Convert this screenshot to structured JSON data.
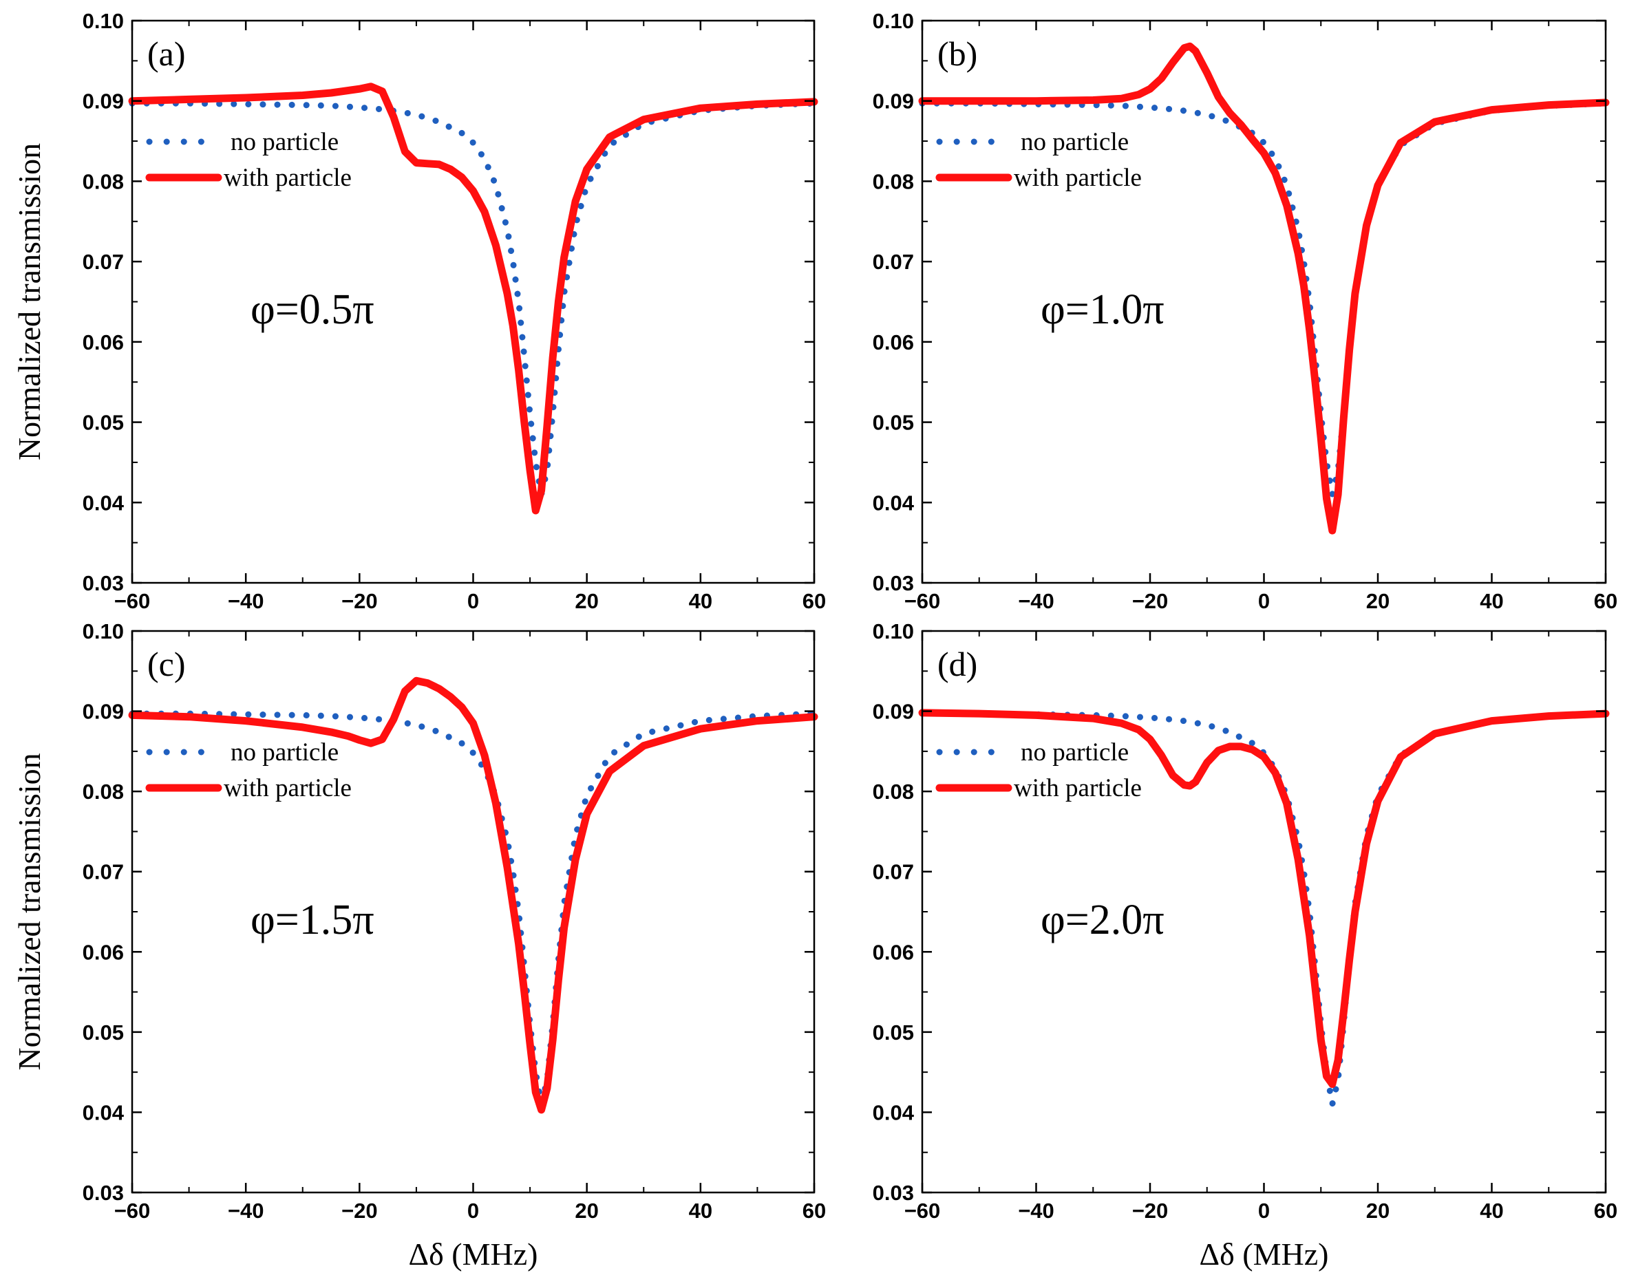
{
  "chart_data": [
    {
      "type": "line",
      "panel_label": "(a)",
      "annotation": "φ=0.5π",
      "xlabel": "",
      "ylabel": "Normalized transmission",
      "xlim": [
        -60,
        60
      ],
      "ylim": [
        0.03,
        0.1
      ],
      "xticks": [
        "−60",
        "−40",
        "−20",
        "0",
        "20",
        "40",
        "60"
      ],
      "yticks": [
        "0.03",
        "0.04",
        "0.05",
        "0.06",
        "0.07",
        "0.08",
        "0.09",
        "0.10"
      ],
      "legend": [
        "no particle",
        "with particle"
      ],
      "series": [
        {
          "name": "no particle",
          "style": "dotted",
          "color": "#1f5fbf",
          "x": [
            -60,
            -50,
            -40,
            -30,
            -25,
            -20,
            -15,
            -10,
            -6,
            -2,
            0,
            2,
            4,
            6,
            7,
            8,
            9,
            10,
            11,
            12,
            13,
            14,
            15,
            16,
            18,
            20,
            24,
            30,
            40,
            50,
            60
          ],
          "y": [
            0.0897,
            0.0897,
            0.0896,
            0.0895,
            0.0894,
            0.0892,
            0.0889,
            0.0883,
            0.0874,
            0.086,
            0.0848,
            0.0828,
            0.0795,
            0.074,
            0.07,
            0.065,
            0.0582,
            0.051,
            0.045,
            0.041,
            0.044,
            0.051,
            0.059,
            0.066,
            0.0745,
            0.0795,
            0.0845,
            0.0872,
            0.0888,
            0.0894,
            0.0897
          ]
        },
        {
          "name": "with particle",
          "style": "solid",
          "color": "#ff1010",
          "x": [
            -60,
            -50,
            -40,
            -30,
            -25,
            -20,
            -18,
            -16,
            -14,
            -12,
            -10,
            -8,
            -6,
            -4,
            -2,
            0,
            2,
            4,
            6,
            7,
            8,
            9,
            10,
            11,
            12,
            13,
            14,
            15,
            16,
            18,
            20,
            24,
            30,
            40,
            50,
            60
          ],
          "y": [
            0.09,
            0.0902,
            0.0904,
            0.0907,
            0.091,
            0.0915,
            0.0918,
            0.0912,
            0.088,
            0.0837,
            0.0823,
            0.0822,
            0.0821,
            0.0815,
            0.0805,
            0.0788,
            0.0762,
            0.072,
            0.066,
            0.062,
            0.0565,
            0.05,
            0.044,
            0.039,
            0.0415,
            0.0495,
            0.058,
            0.065,
            0.0705,
            0.0775,
            0.0815,
            0.0855,
            0.0877,
            0.0891,
            0.0896,
            0.0899
          ]
        }
      ]
    },
    {
      "type": "line",
      "panel_label": "(b)",
      "annotation": "φ=1.0π",
      "xlabel": "",
      "ylabel": "",
      "xlim": [
        -60,
        60
      ],
      "ylim": [
        0.03,
        0.1
      ],
      "xticks": [
        "−60",
        "−40",
        "−20",
        "0",
        "20",
        "40",
        "60"
      ],
      "yticks": [
        "0.03",
        "0.04",
        "0.05",
        "0.06",
        "0.07",
        "0.08",
        "0.09",
        "0.10"
      ],
      "legend": [
        "no particle",
        "with particle"
      ],
      "series": [
        {
          "name": "no particle",
          "style": "dotted",
          "color": "#1f5fbf",
          "x": [
            -60,
            -50,
            -40,
            -30,
            -25,
            -20,
            -15,
            -10,
            -6,
            -2,
            0,
            2,
            4,
            6,
            7,
            8,
            9,
            10,
            11,
            12,
            13,
            14,
            15,
            16,
            18,
            20,
            24,
            30,
            40,
            50,
            60
          ],
          "y": [
            0.0897,
            0.0897,
            0.0896,
            0.0895,
            0.0894,
            0.0892,
            0.0889,
            0.0883,
            0.0874,
            0.086,
            0.0848,
            0.0828,
            0.0795,
            0.074,
            0.07,
            0.065,
            0.0582,
            0.051,
            0.045,
            0.041,
            0.044,
            0.051,
            0.059,
            0.066,
            0.0745,
            0.0795,
            0.0845,
            0.0872,
            0.0888,
            0.0894,
            0.0897
          ]
        },
        {
          "name": "with particle",
          "style": "solid",
          "color": "#ff1010",
          "x": [
            -60,
            -40,
            -30,
            -25,
            -22,
            -20,
            -18,
            -16,
            -14,
            -13,
            -12,
            -10,
            -8,
            -6,
            -4,
            -2,
            0,
            2,
            4,
            6,
            7,
            8,
            9,
            10,
            11,
            12,
            13,
            14,
            15,
            16,
            18,
            20,
            24,
            30,
            40,
            50,
            60
          ],
          "y": [
            0.09,
            0.09,
            0.0901,
            0.0903,
            0.0908,
            0.0915,
            0.0928,
            0.0948,
            0.0966,
            0.0968,
            0.0962,
            0.0935,
            0.0905,
            0.0885,
            0.087,
            0.0852,
            0.0835,
            0.081,
            0.077,
            0.071,
            0.067,
            0.0615,
            0.055,
            0.048,
            0.0405,
            0.0365,
            0.041,
            0.0505,
            0.059,
            0.066,
            0.0745,
            0.0795,
            0.0848,
            0.0874,
            0.0889,
            0.0895,
            0.0898
          ]
        }
      ]
    },
    {
      "type": "line",
      "panel_label": "(c)",
      "annotation": "φ=1.5π",
      "xlabel": "Δδ (MHz)",
      "ylabel": "Normalized transmission",
      "xlim": [
        -60,
        60
      ],
      "ylim": [
        0.03,
        0.1
      ],
      "xticks": [
        "−60",
        "−40",
        "−20",
        "0",
        "20",
        "40",
        "60"
      ],
      "yticks": [
        "0.03",
        "0.04",
        "0.05",
        "0.06",
        "0.07",
        "0.08",
        "0.09",
        "0.10"
      ],
      "legend": [
        "no particle",
        "with particle"
      ],
      "series": [
        {
          "name": "no particle",
          "style": "dotted",
          "color": "#1f5fbf",
          "x": [
            -60,
            -50,
            -40,
            -30,
            -25,
            -20,
            -15,
            -10,
            -6,
            -2,
            0,
            2,
            4,
            6,
            7,
            8,
            9,
            10,
            11,
            12,
            13,
            14,
            15,
            16,
            18,
            20,
            24,
            30,
            40,
            50,
            60
          ],
          "y": [
            0.0897,
            0.0897,
            0.0896,
            0.0895,
            0.0894,
            0.0892,
            0.0889,
            0.0883,
            0.0874,
            0.086,
            0.0848,
            0.0828,
            0.0795,
            0.074,
            0.07,
            0.065,
            0.0582,
            0.051,
            0.045,
            0.041,
            0.044,
            0.051,
            0.059,
            0.066,
            0.0745,
            0.0795,
            0.0845,
            0.0872,
            0.0888,
            0.0894,
            0.0897
          ]
        },
        {
          "name": "with particle",
          "style": "solid",
          "color": "#ff1010",
          "x": [
            -60,
            -50,
            -40,
            -30,
            -25,
            -22,
            -20,
            -18,
            -16,
            -14,
            -12,
            -10,
            -8,
            -6,
            -4,
            -2,
            0,
            2,
            4,
            6,
            8,
            9,
            10,
            11,
            12,
            13,
            14,
            15,
            16,
            18,
            20,
            24,
            30,
            40,
            50,
            60
          ],
          "y": [
            0.0895,
            0.0893,
            0.0888,
            0.088,
            0.0874,
            0.0869,
            0.0864,
            0.086,
            0.0865,
            0.089,
            0.0925,
            0.0938,
            0.0935,
            0.0928,
            0.0918,
            0.0905,
            0.0885,
            0.0845,
            0.0785,
            0.0705,
            0.061,
            0.055,
            0.0485,
            0.0425,
            0.0403,
            0.043,
            0.049,
            0.0565,
            0.063,
            0.0715,
            0.0772,
            0.0825,
            0.0857,
            0.0878,
            0.0888,
            0.0893
          ]
        }
      ]
    },
    {
      "type": "line",
      "panel_label": "(d)",
      "annotation": "φ=2.0π",
      "xlabel": "Δδ (MHz)",
      "ylabel": "",
      "xlim": [
        -60,
        60
      ],
      "ylim": [
        0.03,
        0.1
      ],
      "xticks": [
        "−60",
        "−40",
        "−20",
        "0",
        "20",
        "40",
        "60"
      ],
      "yticks": [
        "0.03",
        "0.04",
        "0.05",
        "0.06",
        "0.07",
        "0.08",
        "0.09",
        "0.10"
      ],
      "legend": [
        "no particle",
        "with particle"
      ],
      "series": [
        {
          "name": "no particle",
          "style": "dotted",
          "color": "#1f5fbf",
          "x": [
            -60,
            -50,
            -40,
            -30,
            -25,
            -20,
            -15,
            -10,
            -6,
            -2,
            0,
            2,
            4,
            6,
            7,
            8,
            9,
            10,
            11,
            12,
            13,
            14,
            15,
            16,
            18,
            20,
            24,
            30,
            40,
            50,
            60
          ],
          "y": [
            0.0897,
            0.0897,
            0.0896,
            0.0895,
            0.0894,
            0.0892,
            0.0889,
            0.0883,
            0.0874,
            0.086,
            0.0848,
            0.0828,
            0.0795,
            0.074,
            0.07,
            0.065,
            0.0582,
            0.051,
            0.045,
            0.041,
            0.044,
            0.051,
            0.059,
            0.066,
            0.0745,
            0.0795,
            0.0845,
            0.0872,
            0.0888,
            0.0894,
            0.0897
          ]
        },
        {
          "name": "with particle",
          "style": "solid",
          "color": "#ff1010",
          "x": [
            -60,
            -50,
            -40,
            -30,
            -25,
            -22,
            -20,
            -18,
            -16,
            -14,
            -13,
            -12,
            -10,
            -8,
            -6,
            -4,
            -2,
            0,
            2,
            4,
            6,
            8,
            9,
            10,
            11,
            12,
            13,
            14,
            15,
            16,
            18,
            20,
            24,
            30,
            40,
            50,
            60
          ],
          "y": [
            0.0898,
            0.0897,
            0.0895,
            0.0891,
            0.0885,
            0.0877,
            0.0865,
            0.0845,
            0.082,
            0.0808,
            0.0807,
            0.0812,
            0.0836,
            0.0851,
            0.0856,
            0.0856,
            0.0852,
            0.0843,
            0.0823,
            0.0785,
            0.0715,
            0.062,
            0.0555,
            0.049,
            0.0445,
            0.0435,
            0.0465,
            0.0525,
            0.059,
            0.065,
            0.0735,
            0.0788,
            0.0843,
            0.0872,
            0.0888,
            0.0894,
            0.0897
          ]
        }
      ]
    }
  ]
}
